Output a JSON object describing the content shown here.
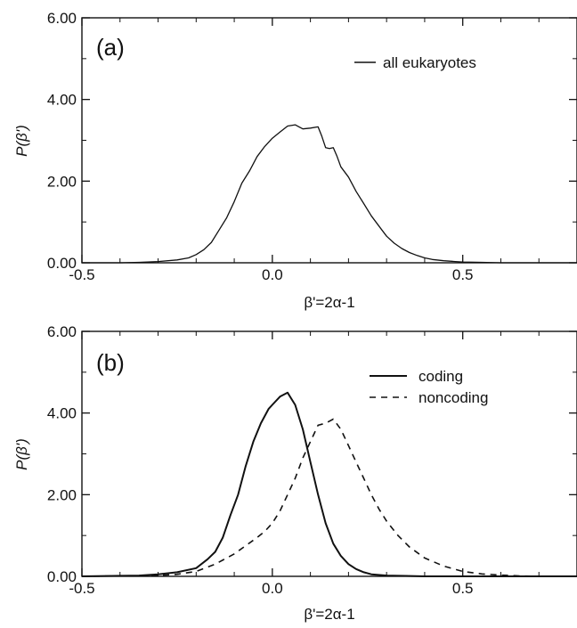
{
  "chart_data": [
    {
      "type": "line",
      "panel_label": "(a)",
      "xlabel": "β'=2α-1",
      "ylabel": "P(β')",
      "xlim": [
        -0.5,
        0.8
      ],
      "ylim": [
        0,
        6
      ],
      "xticks": [
        -0.5,
        0.0,
        0.5
      ],
      "xtick_labels": [
        "-0.5",
        "0.0",
        "0.5"
      ],
      "yticks": [
        0,
        2,
        4,
        6
      ],
      "ytick_labels": [
        "0.00",
        "2.00",
        "4.00",
        "6.00"
      ],
      "legend_position": "top-right",
      "series": [
        {
          "name": "all eukaryotes",
          "style": "solid",
          "x": [
            -0.5,
            -0.4,
            -0.35,
            -0.3,
            -0.25,
            -0.22,
            -0.2,
            -0.18,
            -0.16,
            -0.14,
            -0.12,
            -0.1,
            -0.08,
            -0.06,
            -0.04,
            -0.02,
            0.0,
            0.02,
            0.04,
            0.06,
            0.07,
            0.08,
            0.1,
            0.12,
            0.13,
            0.14,
            0.15,
            0.16,
            0.17,
            0.18,
            0.2,
            0.22,
            0.24,
            0.26,
            0.28,
            0.3,
            0.32,
            0.34,
            0.36,
            0.38,
            0.4,
            0.42,
            0.45,
            0.48,
            0.5,
            0.55,
            0.6,
            0.7,
            0.8
          ],
          "y": [
            0.0,
            0.0,
            0.01,
            0.03,
            0.07,
            0.12,
            0.2,
            0.32,
            0.5,
            0.8,
            1.1,
            1.5,
            1.95,
            2.25,
            2.6,
            2.85,
            3.05,
            3.2,
            3.35,
            3.38,
            3.33,
            3.28,
            3.3,
            3.33,
            3.1,
            2.82,
            2.8,
            2.82,
            2.6,
            2.35,
            2.1,
            1.75,
            1.45,
            1.15,
            0.9,
            0.65,
            0.48,
            0.35,
            0.25,
            0.18,
            0.12,
            0.08,
            0.05,
            0.03,
            0.02,
            0.01,
            0.0,
            0.0,
            0.0
          ]
        }
      ]
    },
    {
      "type": "line",
      "panel_label": "(b)",
      "xlabel": "β'=2α-1",
      "ylabel": "P(β')",
      "xlim": [
        -0.5,
        0.8
      ],
      "ylim": [
        0,
        6
      ],
      "xticks": [
        -0.5,
        0.0,
        0.5
      ],
      "xtick_labels": [
        "-0.5",
        "0.0",
        "0.5"
      ],
      "yticks": [
        0,
        2,
        4,
        6
      ],
      "ytick_labels": [
        "0.00",
        "2.00",
        "4.00",
        "6.00"
      ],
      "legend_position": "top-right",
      "series": [
        {
          "name": "coding",
          "style": "solid",
          "x": [
            -0.5,
            -0.35,
            -0.3,
            -0.25,
            -0.2,
            -0.17,
            -0.15,
            -0.13,
            -0.11,
            -0.09,
            -0.07,
            -0.05,
            -0.03,
            -0.01,
            0.0,
            0.02,
            0.04,
            0.05,
            0.06,
            0.08,
            0.1,
            0.12,
            0.14,
            0.16,
            0.18,
            0.2,
            0.22,
            0.24,
            0.26,
            0.3,
            0.35,
            0.4,
            0.5,
            0.6,
            0.8
          ],
          "y": [
            0.0,
            0.02,
            0.05,
            0.1,
            0.2,
            0.42,
            0.6,
            0.95,
            1.5,
            2.0,
            2.7,
            3.3,
            3.75,
            4.1,
            4.2,
            4.4,
            4.5,
            4.35,
            4.2,
            3.6,
            2.8,
            2.0,
            1.3,
            0.8,
            0.5,
            0.3,
            0.18,
            0.1,
            0.05,
            0.02,
            0.01,
            0.0,
            0.0,
            0.0,
            0.0
          ]
        },
        {
          "name": "noncoding",
          "style": "dashed",
          "x": [
            -0.5,
            -0.3,
            -0.25,
            -0.2,
            -0.15,
            -0.1,
            -0.07,
            -0.04,
            -0.02,
            0.0,
            0.02,
            0.04,
            0.06,
            0.08,
            0.1,
            0.12,
            0.14,
            0.16,
            0.18,
            0.2,
            0.22,
            0.24,
            0.26,
            0.28,
            0.3,
            0.33,
            0.36,
            0.4,
            0.45,
            0.5,
            0.55,
            0.6,
            0.65,
            0.7,
            0.8
          ],
          "y": [
            0.0,
            0.02,
            0.05,
            0.12,
            0.3,
            0.55,
            0.75,
            0.95,
            1.1,
            1.3,
            1.6,
            2.0,
            2.4,
            2.9,
            3.3,
            3.7,
            3.75,
            3.85,
            3.6,
            3.2,
            2.8,
            2.4,
            2.0,
            1.65,
            1.35,
            1.0,
            0.72,
            0.45,
            0.25,
            0.12,
            0.06,
            0.03,
            0.01,
            0.0,
            0.0
          ]
        }
      ]
    }
  ]
}
